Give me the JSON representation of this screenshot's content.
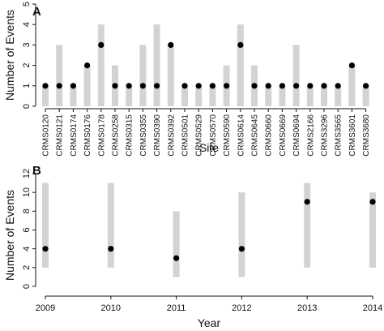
{
  "chart_data": [
    {
      "panel_label": "A",
      "type": "scatter",
      "xlabel": "Site",
      "ylabel": "Number of Events",
      "ylim": [
        0,
        5
      ],
      "yticks": [
        "0",
        "1",
        "2",
        "3",
        "4",
        "5"
      ],
      "categories": [
        "CRMS0120",
        "CRMS0121",
        "CRMS0174",
        "CRMS0176",
        "CRMS0178",
        "CRMS0258",
        "CRMS0315",
        "CRMS0355",
        "CRMS0390",
        "CRMS0392",
        "CRMS0501",
        "CRMS0529",
        "CRMS0570",
        "CRMS0590",
        "CRMS0614",
        "CRMS0645",
        "CRMS0660",
        "CRMS0669",
        "CRMS0694",
        "CRMS2166",
        "CRMS3296",
        "CRMS3565",
        "CRMS3601",
        "CRMS3680"
      ],
      "range_max": [
        1,
        3,
        1,
        2,
        4,
        2,
        1,
        3,
        4,
        3,
        1,
        1,
        1,
        2,
        4,
        2,
        1,
        1,
        3,
        1,
        1,
        1,
        2,
        1
      ],
      "points": [
        1,
        1,
        1,
        2,
        3,
        1,
        1,
        1,
        1,
        3,
        1,
        1,
        1,
        1,
        3,
        1,
        1,
        1,
        1,
        1,
        1,
        1,
        2,
        1
      ],
      "bar_color": "#d3d3d3",
      "point_color": "#000000"
    },
    {
      "panel_label": "B",
      "type": "scatter",
      "xlabel": "Year",
      "ylabel": "Number of Events",
      "ylim": [
        0,
        12
      ],
      "yticks": [
        "0",
        "2",
        "4",
        "6",
        "8",
        "10",
        "12"
      ],
      "xlim": [
        2009,
        2014
      ],
      "xticks": [
        "2009",
        "2010",
        "2011",
        "2012",
        "2013",
        "2014"
      ],
      "x": [
        2009,
        2010,
        2011,
        2012,
        2013,
        2014
      ],
      "range_min": [
        2,
        2,
        1,
        1,
        2,
        2
      ],
      "range_max": [
        11,
        11,
        8,
        10,
        11,
        10
      ],
      "points": [
        4,
        4,
        3,
        4,
        9,
        9
      ],
      "bar_color": "#d3d3d3",
      "point_color": "#000000"
    }
  ]
}
